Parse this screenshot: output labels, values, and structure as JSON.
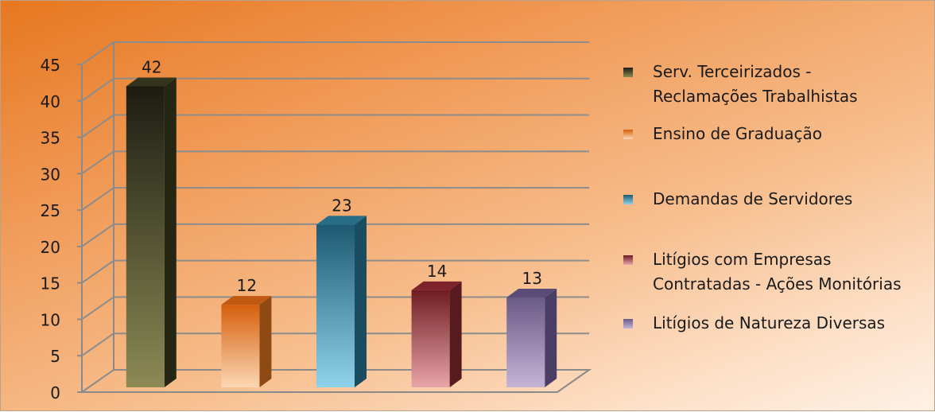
{
  "chart_data": {
    "type": "bar",
    "three_d": true,
    "title": "",
    "xlabel": "",
    "ylabel": "",
    "ylim": [
      0,
      45
    ],
    "y_ticks": [
      0,
      5,
      10,
      15,
      20,
      25,
      30,
      35,
      40,
      45
    ],
    "grid": true,
    "legend_position": "right",
    "series": [
      {
        "name": "Serv. Terceirizados - Reclamações Trabalhistas",
        "value": 42,
        "color": "#4a4a2c",
        "legend_lines": [
          "Serv. Terceirizados -",
          "Reclamações Trabalhistas"
        ]
      },
      {
        "name": "Ensino de Graduação",
        "value": 12,
        "color": "#e8781e",
        "legend_lines": [
          "Ensino de Graduação"
        ]
      },
      {
        "name": "Demandas de Servidores",
        "value": 23,
        "color": "#2e8aa8",
        "legend_lines": [
          "Demandas de Servidores"
        ]
      },
      {
        "name": "Litígios com Empresas Contratadas - Ações Monitórias",
        "value": 14,
        "color": "#a83a40",
        "legend_lines": [
          "Litígios com Empresas",
          "Contratadas - Ações Monitórias"
        ]
      },
      {
        "name": "Litígios de Natureza Diversas",
        "value": 13,
        "color": "#8a7aa8",
        "legend_lines": [
          "Litígios de Natureza Diversas"
        ]
      }
    ],
    "bar_gradients": [
      {
        "top": "#1c1c12",
        "bottom": "#8b8a55",
        "side": "#262614",
        "cap": "#34331d"
      },
      {
        "top": "#d65f0c",
        "bottom": "#fbd7b4",
        "side": "#8f4a14",
        "cap": "#c05a12"
      },
      {
        "top": "#1d5a72",
        "bottom": "#8fd2ea",
        "side": "#1b4d60",
        "cap": "#276d88"
      },
      {
        "top": "#6e1c22",
        "bottom": "#e8a5a8",
        "side": "#571a1e",
        "cap": "#7e2329"
      },
      {
        "top": "#6a5a86",
        "bottom": "#c4b4d6",
        "side": "#4a3e66",
        "cap": "#5a4c76"
      }
    ]
  }
}
